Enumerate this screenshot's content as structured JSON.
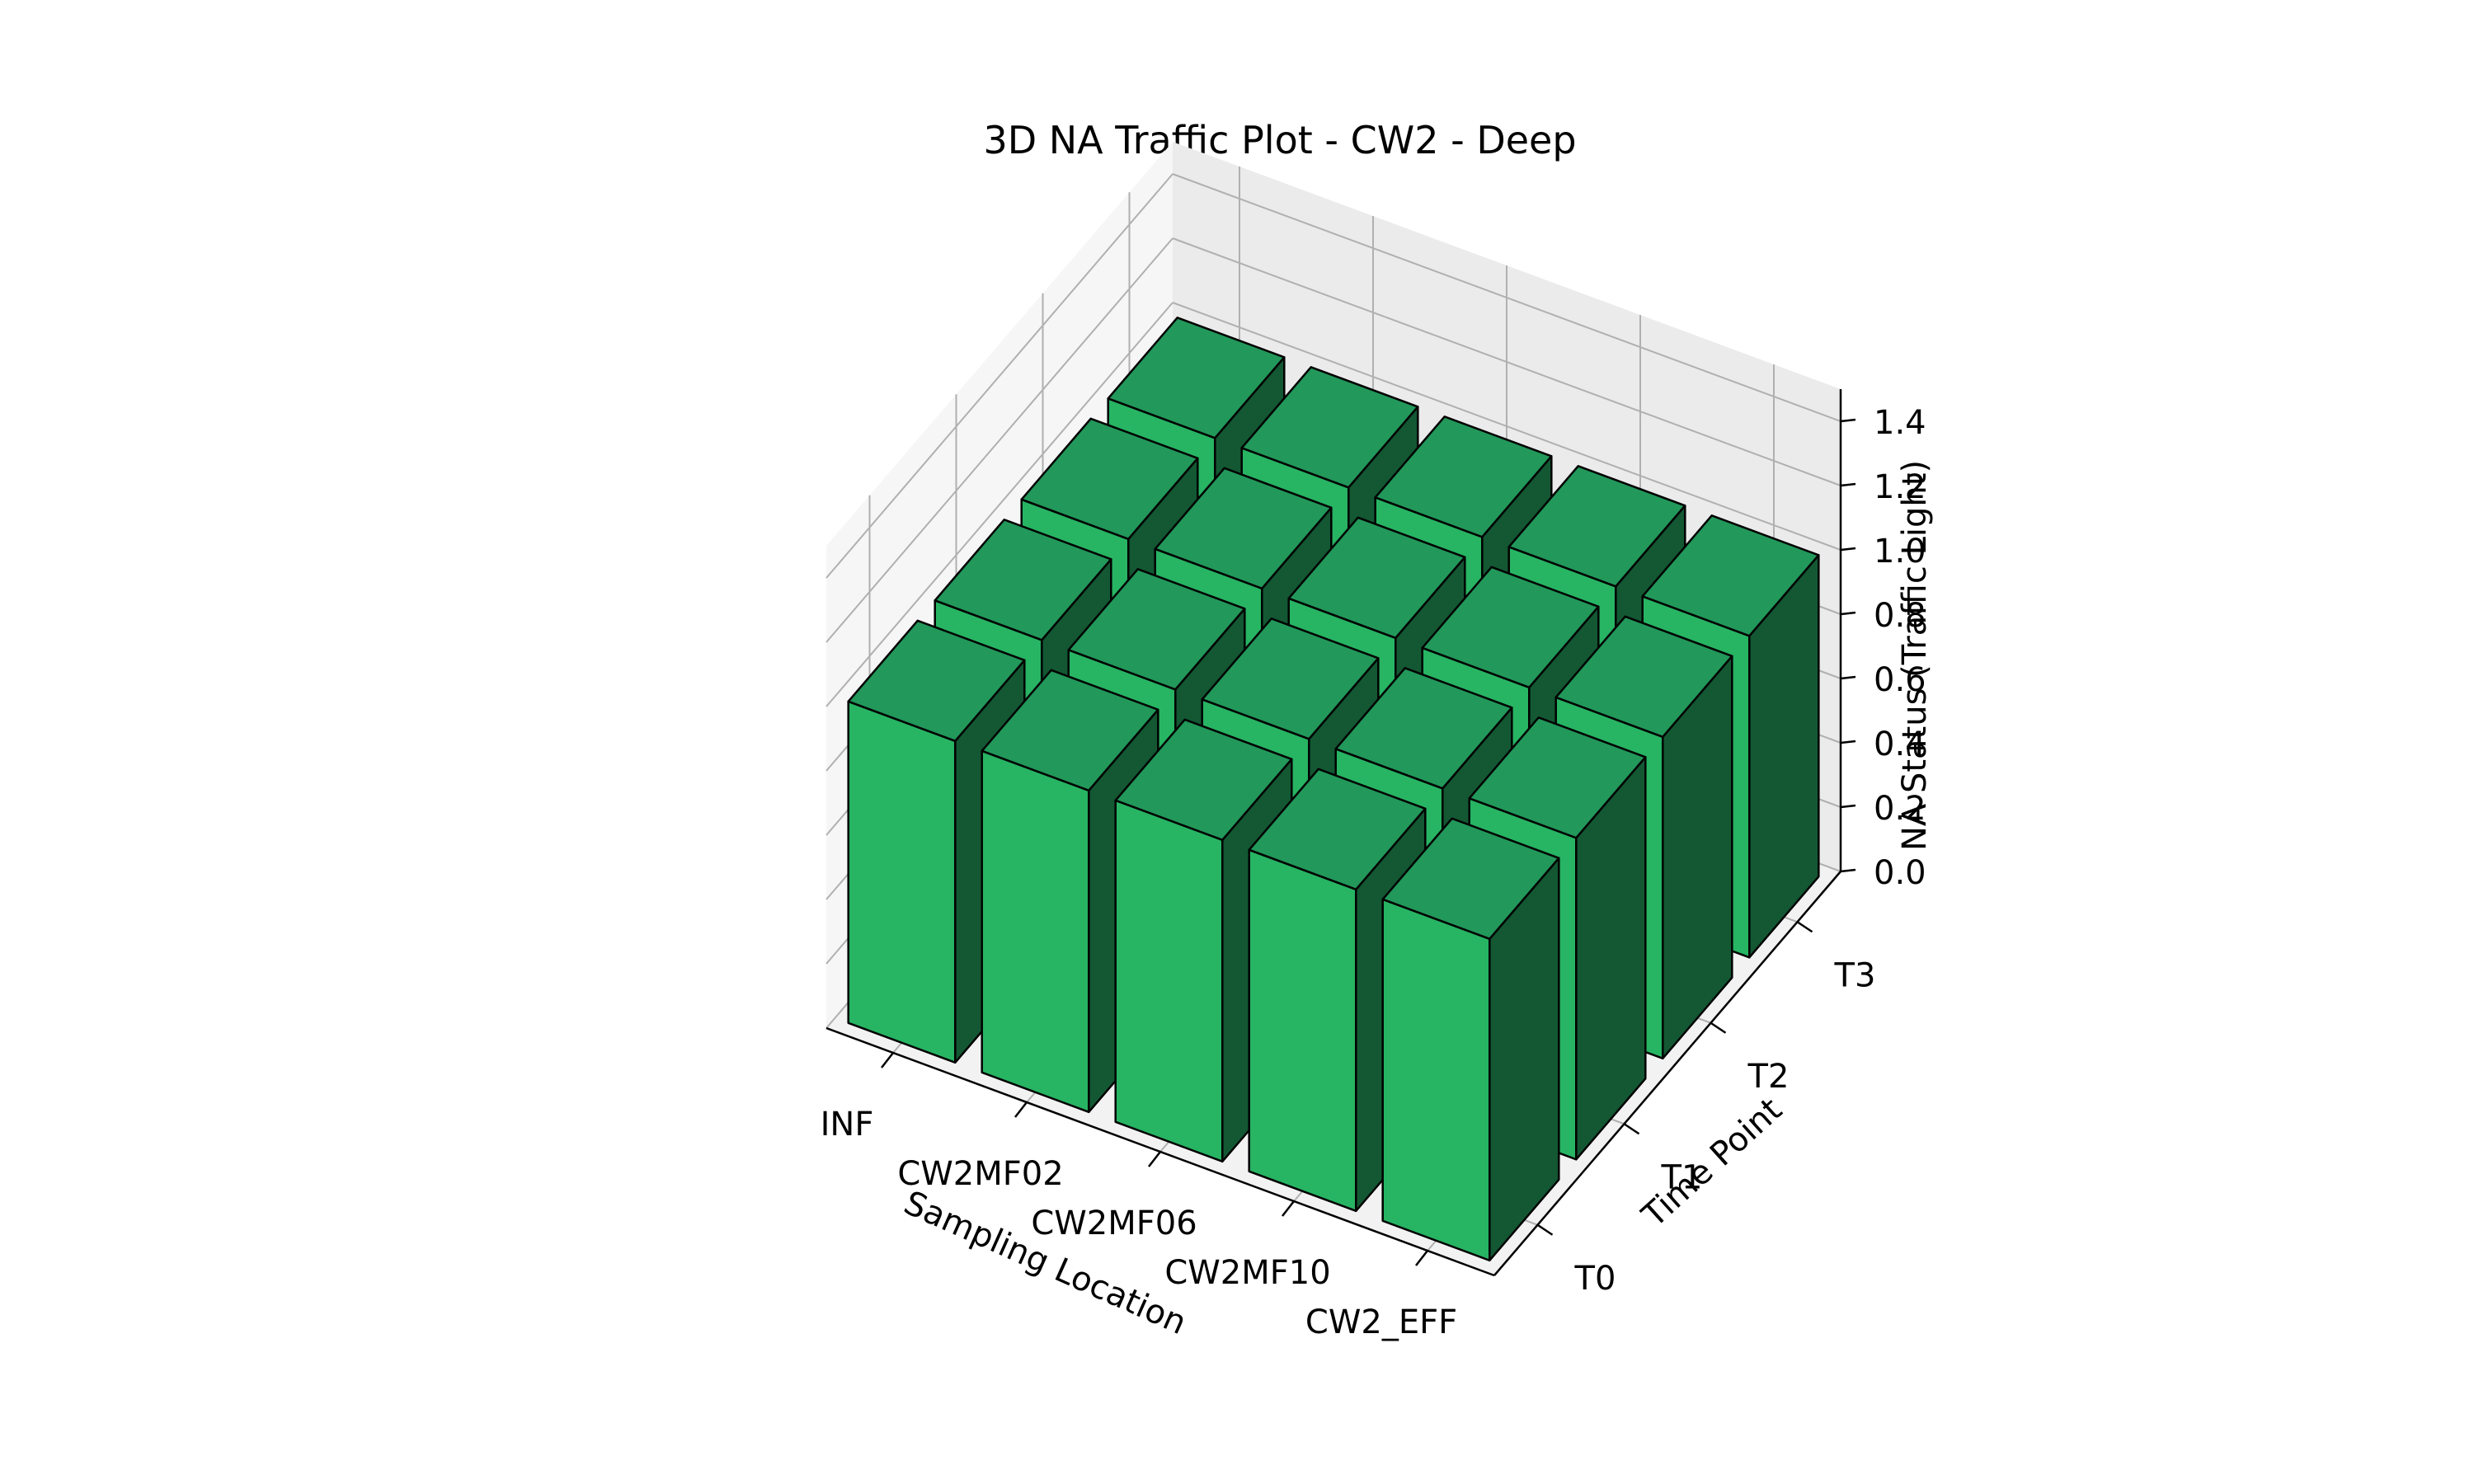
{
  "chart_data": {
    "type": "bar3d",
    "title": "3D NA Traffic Plot - CW2 - Deep",
    "xlabel": "Sampling Location",
    "ylabel": "Time Point",
    "zlabel": "NA Status (Traffic Light)",
    "x_categories": [
      "INF",
      "CW2MF02",
      "CW2MF06",
      "CW2MF10",
      "CW2_EFF"
    ],
    "y_categories": [
      "T0",
      "T1",
      "T2",
      "T3"
    ],
    "z_ticks": [
      "0.0",
      "0.2",
      "0.4",
      "0.6",
      "0.8",
      "1.0",
      "1.2",
      "1.4"
    ],
    "zlim": [
      0,
      1.5
    ],
    "values": [
      [
        1,
        1,
        1,
        1
      ],
      [
        1,
        1,
        1,
        1
      ],
      [
        1,
        1,
        1,
        1
      ],
      [
        1,
        1,
        1,
        1
      ],
      [
        1,
        1,
        1,
        1
      ]
    ],
    "bar_color": "#27b463",
    "bar_top_color": "#22985a",
    "bar_side_color": "#135833",
    "grid": true
  }
}
